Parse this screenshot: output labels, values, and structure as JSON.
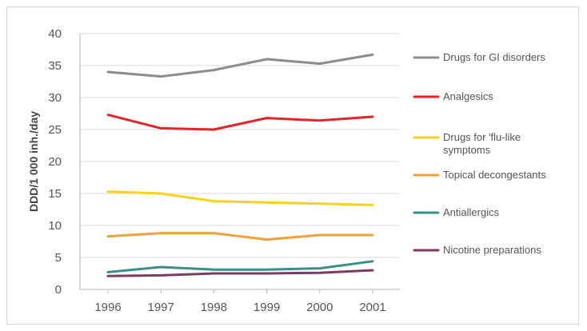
{
  "chart_data": {
    "type": "line",
    "title": "",
    "xlabel": "",
    "ylabel": "DDD/1 000 inh./day",
    "x": [
      "1996",
      "1997",
      "1998",
      "1999",
      "2000",
      "2001"
    ],
    "ylim": [
      0,
      40
    ],
    "yticks": [
      0,
      5,
      10,
      15,
      20,
      25,
      30,
      35,
      40
    ],
    "grid": true,
    "legend_position": "right",
    "series": [
      {
        "name": "Drugs for GI disorders",
        "color": "#8c8c8c",
        "values": [
          34.0,
          33.3,
          34.3,
          36.0,
          35.3,
          36.7
        ]
      },
      {
        "name": "Analgesics",
        "color": "#e0262b",
        "values": [
          27.3,
          25.2,
          25.0,
          26.8,
          26.4,
          27.0
        ]
      },
      {
        "name": "Drugs for 'flu-like symptoms",
        "color": "#f7d21a",
        "values": [
          15.3,
          15.0,
          13.8,
          13.6,
          13.4,
          13.2
        ]
      },
      {
        "name": "Topical decongestants",
        "color": "#f2a13a",
        "values": [
          8.3,
          8.8,
          8.8,
          7.8,
          8.5,
          8.5
        ]
      },
      {
        "name": "Antiallergics",
        "color": "#3a8f8a",
        "values": [
          2.7,
          3.5,
          3.1,
          3.1,
          3.3,
          4.4
        ]
      },
      {
        "name": "Nicotine preparations",
        "color": "#7b3b63",
        "values": [
          2.1,
          2.2,
          2.5,
          2.5,
          2.6,
          3.0
        ]
      }
    ],
    "legend_lines": [
      [
        "Drugs for GI disorders"
      ],
      [
        "Analgesics"
      ],
      [
        "Drugs for 'flu-like",
        "symptoms"
      ],
      [
        "Topical decongestants"
      ],
      [
        "Antiallergics"
      ],
      [
        "Nicotine preparations"
      ]
    ]
  }
}
